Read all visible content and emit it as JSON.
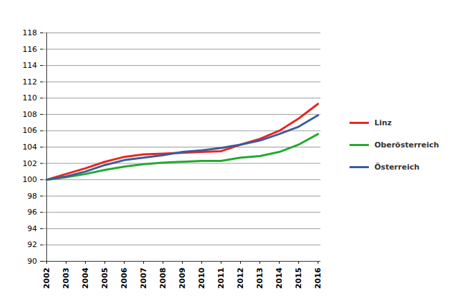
{
  "chart_data": {
    "type": "line",
    "categories": [
      "2002",
      "2003",
      "2004",
      "2005",
      "2006",
      "2007",
      "2008",
      "2009",
      "2010",
      "2011",
      "2012",
      "2013",
      "2014",
      "2015",
      "2016"
    ],
    "series": [
      {
        "name": "Linz",
        "color": "#e8261e",
        "values": [
          100,
          100.7,
          101.4,
          102.2,
          102.8,
          103.1,
          103.2,
          103.3,
          103.4,
          103.5,
          104.3,
          105.0,
          106.0,
          107.5,
          109.3
        ]
      },
      {
        "name": "Oberösterreich",
        "color": "#24a830",
        "values": [
          100,
          100.3,
          100.7,
          101.2,
          101.6,
          101.9,
          102.1,
          102.2,
          102.3,
          102.3,
          102.7,
          102.9,
          103.4,
          104.3,
          105.6
        ]
      },
      {
        "name": "Österreich",
        "color": "#3b5c9a",
        "values": [
          100,
          100.4,
          101.0,
          101.8,
          102.4,
          102.7,
          103.0,
          103.4,
          103.6,
          103.9,
          104.3,
          104.8,
          105.6,
          106.5,
          107.9
        ]
      }
    ],
    "ylim": [
      90,
      118
    ],
    "yticks": [
      90,
      92,
      94,
      96,
      98,
      100,
      102,
      104,
      106,
      108,
      110,
      112,
      114,
      116,
      118
    ],
    "grid": true,
    "legend": "right"
  }
}
